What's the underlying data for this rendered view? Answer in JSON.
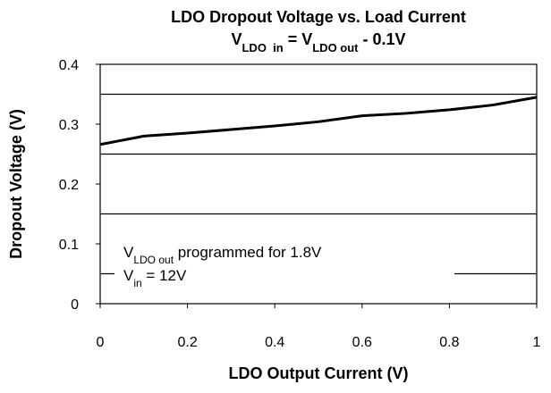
{
  "chart_data": {
    "type": "line",
    "title": "LDO Dropout Voltage vs. Load Current",
    "subtitle": [
      {
        "text": "V"
      },
      {
        "text": "LDO  in",
        "sub": true
      },
      {
        "text": " = V"
      },
      {
        "text": "LDO out",
        "sub": true
      },
      {
        "text": " - 0.1V"
      }
    ],
    "xlabel": "LDO Output Current (V)",
    "ylabel": "Dropout Voltage (V)",
    "x": [
      0,
      0.1,
      0.2,
      0.3,
      0.4,
      0.5,
      0.6,
      0.7,
      0.8,
      0.9,
      1
    ],
    "series": [
      {
        "color": "#000000",
        "values": [
          0.266,
          0.28,
          0.285,
          0.291,
          0.297,
          0.304,
          0.314,
          0.318,
          0.324,
          0.332,
          0.345
        ]
      }
    ],
    "xlim": [
      0,
      1
    ],
    "xticks": [
      0,
      0.2,
      0.4,
      0.6,
      0.8,
      1
    ],
    "ylim": [
      0,
      0.4
    ],
    "yticks": [
      0,
      0.1,
      0.2,
      0.3,
      0.4
    ],
    "ygrid": [
      0.05,
      0.15,
      0.25,
      0.35
    ],
    "annotation": [
      [
        {
          "text": "V"
        },
        {
          "text": "LDO out",
          "sub": true
        },
        {
          "text": " programmed for 1.8V"
        }
      ],
      [
        {
          "text": "V"
        },
        {
          "text": "in",
          "sub": true
        },
        {
          "text": " = 12V"
        }
      ]
    ]
  }
}
